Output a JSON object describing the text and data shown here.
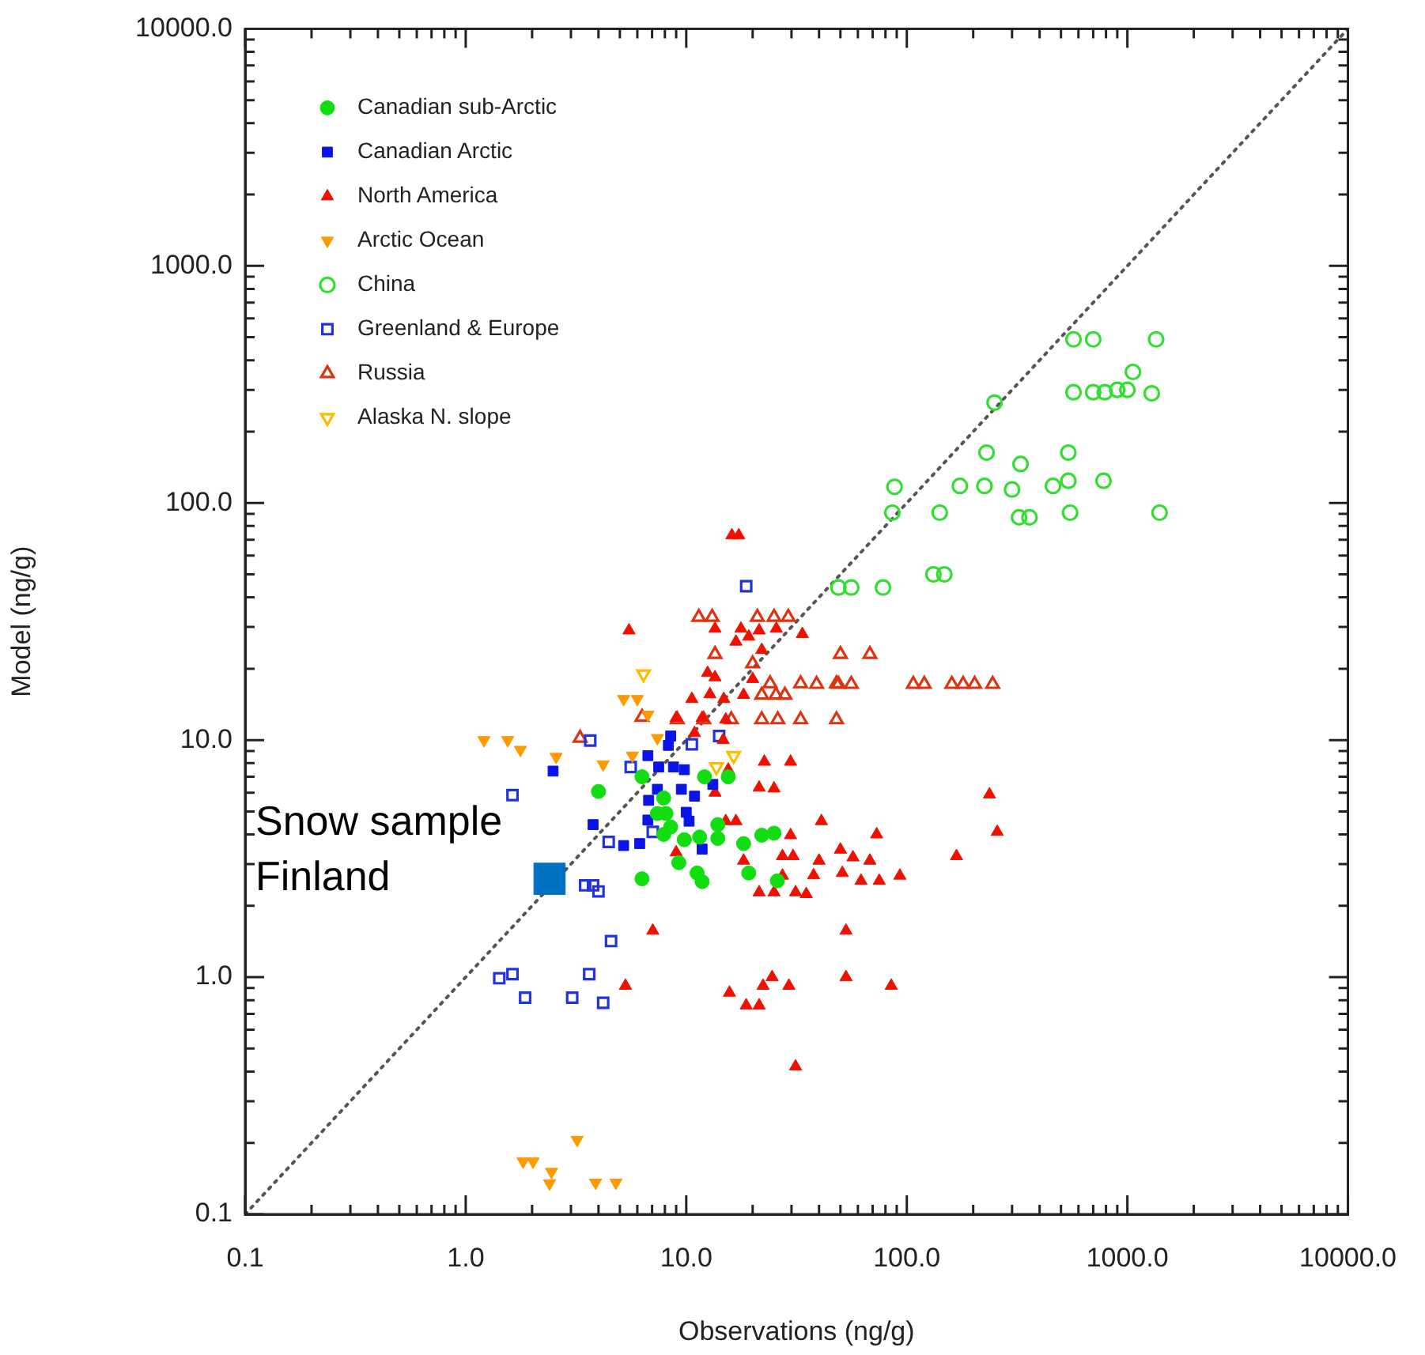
{
  "chart_data": {
    "type": "scatter",
    "xlabel": "Observations (ng/g)",
    "ylabel": "Model (ng/g)",
    "log": "xy",
    "grid": false,
    "legend": "top left",
    "xlim": [
      0.1,
      10000
    ],
    "ylim": [
      0.1,
      10000
    ],
    "xticks": [
      0.1,
      {
        "value": 0.2,
        "label": null
      },
      {
        "value": 0.3,
        "label": null
      },
      {
        "value": 0.4,
        "label": null
      },
      {
        "value": 0.5,
        "label": null
      },
      {
        "value": 0.6,
        "label": null
      },
      {
        "value": 0.7,
        "label": null
      },
      {
        "value": 0.8,
        "label": null
      },
      {
        "value": 0.9,
        "label": null
      },
      {
        "value": 1,
        "label": "1.0"
      },
      {
        "value": 2,
        "label": null
      },
      {
        "value": 3,
        "label": null
      },
      {
        "value": 4,
        "label": null
      },
      {
        "value": 5,
        "label": null
      },
      {
        "value": 6,
        "label": null
      },
      {
        "value": 7,
        "label": null
      },
      {
        "value": 8,
        "label": null
      },
      {
        "value": 9,
        "label": null
      },
      {
        "value": 10,
        "label": "10.0"
      },
      {
        "value": 20,
        "label": null
      },
      {
        "value": 30,
        "label": null
      },
      {
        "value": 40,
        "label": null
      },
      {
        "value": 50,
        "label": null
      },
      {
        "value": 60,
        "label": null
      },
      {
        "value": 70,
        "label": null
      },
      {
        "value": 80,
        "label": null
      },
      {
        "value": 90,
        "label": null
      },
      {
        "value": 100,
        "label": "100.0"
      },
      {
        "value": 200,
        "label": null
      },
      {
        "value": 300,
        "label": null
      },
      {
        "value": 400,
        "label": null
      },
      {
        "value": 500,
        "label": null
      },
      {
        "value": 600,
        "label": null
      },
      {
        "value": 700,
        "label": null
      },
      {
        "value": 800,
        "label": null
      },
      {
        "value": 900,
        "label": null
      },
      {
        "value": 1000,
        "label": "1000.0"
      },
      {
        "value": 2000,
        "label": null
      },
      {
        "value": 3000,
        "label": null
      },
      {
        "value": 4000,
        "label": null
      },
      {
        "value": 5000,
        "label": null
      },
      {
        "value": 6000,
        "label": null
      },
      {
        "value": 7000,
        "label": null
      },
      {
        "value": 8000,
        "label": null
      },
      {
        "value": 9000,
        "label": null
      },
      {
        "value": 10000,
        "label": "10000.0"
      }
    ],
    "yticks": [
      0.1,
      {
        "value": 0.2,
        "label": null
      },
      {
        "value": 0.3,
        "label": null
      },
      {
        "value": 0.4,
        "label": null
      },
      {
        "value": 0.5,
        "label": null
      },
      {
        "value": 0.6,
        "label": null
      },
      {
        "value": 0.7,
        "label": null
      },
      {
        "value": 0.8,
        "label": null
      },
      {
        "value": 0.9,
        "label": null
      },
      {
        "value": 1,
        "label": "1.0"
      },
      {
        "value": 2,
        "label": null
      },
      {
        "value": 3,
        "label": null
      },
      {
        "value": 4,
        "label": null
      },
      {
        "value": 5,
        "label": null
      },
      {
        "value": 6,
        "label": null
      },
      {
        "value": 7,
        "label": null
      },
      {
        "value": 8,
        "label": null
      },
      {
        "value": 9,
        "label": null
      },
      {
        "value": 10,
        "label": "10.0"
      },
      {
        "value": 20,
        "label": null
      },
      {
        "value": 30,
        "label": null
      },
      {
        "value": 40,
        "label": null
      },
      {
        "value": 50,
        "label": null
      },
      {
        "value": 60,
        "label": null
      },
      {
        "value": 70,
        "label": null
      },
      {
        "value": 80,
        "label": null
      },
      {
        "value": 90,
        "label": null
      },
      {
        "value": 100,
        "label": "100.0"
      },
      {
        "value": 200,
        "label": null
      },
      {
        "value": 300,
        "label": null
      },
      {
        "value": 400,
        "label": null
      },
      {
        "value": 500,
        "label": null
      },
      {
        "value": 600,
        "label": null
      },
      {
        "value": 700,
        "label": null
      },
      {
        "value": 800,
        "label": null
      },
      {
        "value": 900,
        "label": null
      },
      {
        "value": 1000,
        "label": "1000.0"
      },
      {
        "value": 2000,
        "label": null
      },
      {
        "value": 3000,
        "label": null
      },
      {
        "value": 4000,
        "label": null
      },
      {
        "value": 5000,
        "label": null
      },
      {
        "value": 6000,
        "label": null
      },
      {
        "value": 7000,
        "label": null
      },
      {
        "value": 8000,
        "label": null
      },
      {
        "value": 9000,
        "label": null
      },
      {
        "value": 10000,
        "label": "10000.0"
      }
    ],
    "annotations": [
      {
        "text": "Snow sample\nFinland",
        "x": 2.4,
        "y": 2.6
      }
    ],
    "series": [
      {
        "type": "line",
        "color": "#555555",
        "line_style": "dotted",
        "marker": "none",
        "x": [
          0.1,
          10000
        ],
        "values": [
          0.1,
          10000
        ]
      },
      {
        "name": "Canadian sub-Arctic",
        "color": "#11dd11",
        "marker": "circle",
        "x": [
          4.0,
          6.3,
          12.1,
          15.5,
          7.9,
          8.1,
          6.3,
          7.4,
          8.5,
          9.25,
          11.2,
          11.8,
          9.8,
          11.5,
          13.9,
          18.2,
          19.2,
          22,
          25,
          25.9,
          7.9,
          13.9
        ],
        "values": [
          6.07,
          7.0,
          7.0,
          7.0,
          5.7,
          4.9,
          2.6,
          4.9,
          4.3,
          3.04,
          2.75,
          2.53,
          3.8,
          3.9,
          3.85,
          3.66,
          2.75,
          3.97,
          4.05,
          2.55,
          4.0,
          4.4
        ]
      },
      {
        "name": "Canadian Arctic",
        "color": "#0a14e6",
        "marker": "square",
        "x": [
          2.49,
          8.5,
          8.3,
          6.7,
          7.5,
          8.75,
          9.8,
          7.4,
          9.5,
          10.9,
          6.6,
          3.78,
          13.2,
          5.2,
          6.15,
          6.7,
          6.75,
          10,
          10.3,
          11.8
        ],
        "values": [
          7.4,
          10.4,
          9.5,
          8.6,
          7.7,
          7.7,
          7.5,
          6.2,
          6.2,
          5.8,
          null,
          4.4,
          6.5,
          3.59,
          3.66,
          4.6,
          5.57,
          4.96,
          4.55,
          3.47
        ]
      },
      {
        "name": "North America",
        "color": "#ee1100",
        "marker": "triangle",
        "x": [
          16.1,
          17.3,
          5.5,
          13.5,
          17.7,
          21.4,
          25.6,
          33.6,
          16.8,
          19.2,
          22,
          12.5,
          13.5,
          20,
          10.6,
          12.8,
          14.8,
          18.2,
          9.0,
          11.8,
          15.1,
          10.9,
          14.7,
          22.6,
          29.7,
          15.5,
          21.4,
          25,
          13.5,
          41,
          73,
          15.1,
          16.8,
          29.7,
          168,
          9,
          18.2,
          27.3,
          30.5,
          40,
          50,
          57,
          68,
          27.3,
          37.8,
          51,
          62,
          75,
          93,
          21.4,
          25,
          31.3,
          35,
          7.05,
          53,
          5.3,
          15.7,
          18.7,
          21.4,
          22.3,
          24.5,
          29.2,
          53,
          85,
          31.3,
          237,
          257
        ],
        "values": [
          73,
          73,
          29,
          29.5,
          29.5,
          29,
          29.5,
          28,
          26,
          27.3,
          24,
          19.2,
          18.4,
          18.1,
          14.9,
          15.6,
          14.9,
          15.5,
          12.4,
          12.4,
          12.2,
          10.7,
          10,
          8.1,
          8.1,
          7.5,
          6.3,
          6.25,
          6.0,
          4.55,
          4.0,
          4.55,
          4.55,
          3.97,
          3.24,
          3.36,
          3.1,
          3.24,
          3.24,
          3.1,
          3.45,
          3.2,
          3.1,
          2.68,
          2.69,
          2.75,
          2.55,
          2.55,
          2.68,
          2.28,
          2.28,
          2.28,
          2.24,
          1.57,
          1.57,
          0.92,
          0.86,
          0.76,
          0.76,
          0.92,
          1.0,
          0.92,
          1.0,
          0.92,
          0.42,
          5.9,
          4.1
        ]
      },
      {
        "name": "Arctic Ocean",
        "color": "#ff9900",
        "marker": "triangle-down",
        "x": [
          1.21,
          1.55,
          1.77,
          2.57,
          4.2,
          5.2,
          6.0,
          6.7,
          5.7,
          7.4,
          3.2,
          1.82,
          2.02,
          2.45,
          2.4,
          3.88,
          4.8
        ],
        "values": [
          10.0,
          10.0,
          9.1,
          8.5,
          7.9,
          14.9,
          14.9,
          12.8,
          8.6,
          10.2,
          0.206,
          0.167,
          0.167,
          0.151,
          0.135,
          0.136,
          0.136
        ]
      },
      {
        "name": "China",
        "color": "#33dd33",
        "marker": "circle-open",
        "x": [
          570,
          700,
          1350,
          1060,
          570,
          700,
          790,
          900,
          1000,
          1290,
          250,
          230,
          328,
          540,
          88,
          174,
          225,
          300,
          460,
          540,
          780,
          86,
          141,
          323,
          360,
          550,
          1400,
          132,
          148,
          49,
          56,
          78
        ],
        "values": [
          490,
          490,
          490,
          357,
          293,
          293,
          293,
          300,
          300,
          290,
          265,
          163,
          146,
          163,
          117,
          118,
          118,
          114,
          118,
          124,
          124,
          91,
          91,
          87,
          87,
          91,
          91,
          50,
          50,
          44,
          44,
          44
        ]
      },
      {
        "name": "Greenland & Europe",
        "color": "#2233dd",
        "marker": "square-open",
        "x": [
          1.42,
          1.63,
          1.86,
          3.04,
          3.63,
          4.2,
          4.56,
          3.48,
          4.0,
          3.78,
          4.45,
          1.63,
          3.67,
          18.7,
          10.6,
          14.1,
          5.6,
          7.05
        ],
        "values": [
          0.99,
          1.03,
          0.82,
          0.82,
          1.03,
          0.78,
          1.42,
          2.44,
          2.3,
          2.44,
          3.72,
          5.86,
          9.96,
          44.6,
          9.6,
          10.4,
          7.7,
          4.1
        ]
      },
      {
        "name": "Russia",
        "color": "#dd3311",
        "marker": "triangle-open",
        "x": [
          50,
          68,
          39,
          49,
          56,
          107,
          120,
          160,
          180,
          203,
          245,
          11.4,
          13.1,
          21,
          25,
          29,
          13.5,
          20,
          24,
          33,
          48,
          22,
          25.5,
          28,
          9.1,
          12,
          16,
          22,
          26,
          33,
          48,
          3.3,
          6.3
        ],
        "values": [
          23,
          23,
          17.2,
          17.2,
          17.2,
          17.2,
          17.2,
          17.2,
          17.2,
          17.2,
          17.2,
          33,
          33,
          33,
          33,
          33,
          23,
          21,
          17.3,
          17.3,
          17.3,
          15.5,
          15.5,
          15.5,
          12.2,
          12.2,
          12.2,
          12.2,
          12.2,
          12.2,
          12.2,
          10.2,
          12.5
        ]
      },
      {
        "name": "Alaska N. slope",
        "color": "#ffbb00",
        "marker": "triangle-down-open",
        "x": [
          6.4,
          16.4,
          13.7
        ],
        "values": [
          19,
          8.6,
          7.7
        ]
      },
      {
        "color": "#0070c0",
        "marker": "square",
        "x": [
          2.4
        ],
        "values": [
          2.6
        ]
      }
    ]
  }
}
